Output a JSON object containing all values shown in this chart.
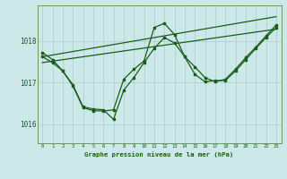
{
  "bg_color": "#cce8e8",
  "plot_bg_color": "#cce8e8",
  "grid_color": "#aacccc",
  "line_color": "#1a5c1a",
  "marker_color": "#1a5c1a",
  "title": "Graphe pression niveau de la mer (hPa)",
  "xlim": [
    -0.5,
    23.5
  ],
  "ylim": [
    1015.55,
    1018.85
  ],
  "yticks": [
    1016,
    1017,
    1018
  ],
  "xticks": [
    0,
    1,
    2,
    3,
    4,
    5,
    6,
    7,
    8,
    9,
    10,
    11,
    12,
    13,
    14,
    15,
    16,
    17,
    18,
    19,
    20,
    21,
    22,
    23
  ],
  "series1": {
    "x": [
      0,
      1,
      2,
      3,
      4,
      5,
      6,
      7,
      8,
      9,
      10,
      11,
      12,
      13,
      14,
      15,
      16,
      17,
      18,
      19,
      20,
      21,
      22,
      23
    ],
    "y": [
      1017.72,
      1017.55,
      1017.28,
      1016.95,
      1016.42,
      1016.37,
      1016.35,
      1016.12,
      1016.82,
      1017.12,
      1017.48,
      1017.82,
      1018.08,
      1017.95,
      1017.62,
      1017.38,
      1017.12,
      1017.02,
      1017.08,
      1017.32,
      1017.6,
      1017.85,
      1018.12,
      1018.38
    ]
  },
  "series2": {
    "x": [
      0,
      1,
      2,
      3,
      4,
      5,
      6,
      7,
      8,
      9,
      10,
      11,
      12,
      13,
      14,
      15,
      16,
      17,
      18,
      19,
      20,
      21,
      22,
      23
    ],
    "y": [
      1017.62,
      1017.48,
      1017.28,
      1016.92,
      1016.4,
      1016.33,
      1016.32,
      1016.35,
      1017.08,
      1017.32,
      1017.52,
      1018.32,
      1018.42,
      1018.15,
      1017.62,
      1017.2,
      1017.02,
      1017.05,
      1017.05,
      1017.28,
      1017.55,
      1017.82,
      1018.08,
      1018.32
    ]
  },
  "series3": {
    "x": [
      0,
      23
    ],
    "y": [
      1017.62,
      1018.58
    ]
  },
  "series4": {
    "x": [
      0,
      23
    ],
    "y": [
      1017.48,
      1018.28
    ]
  }
}
